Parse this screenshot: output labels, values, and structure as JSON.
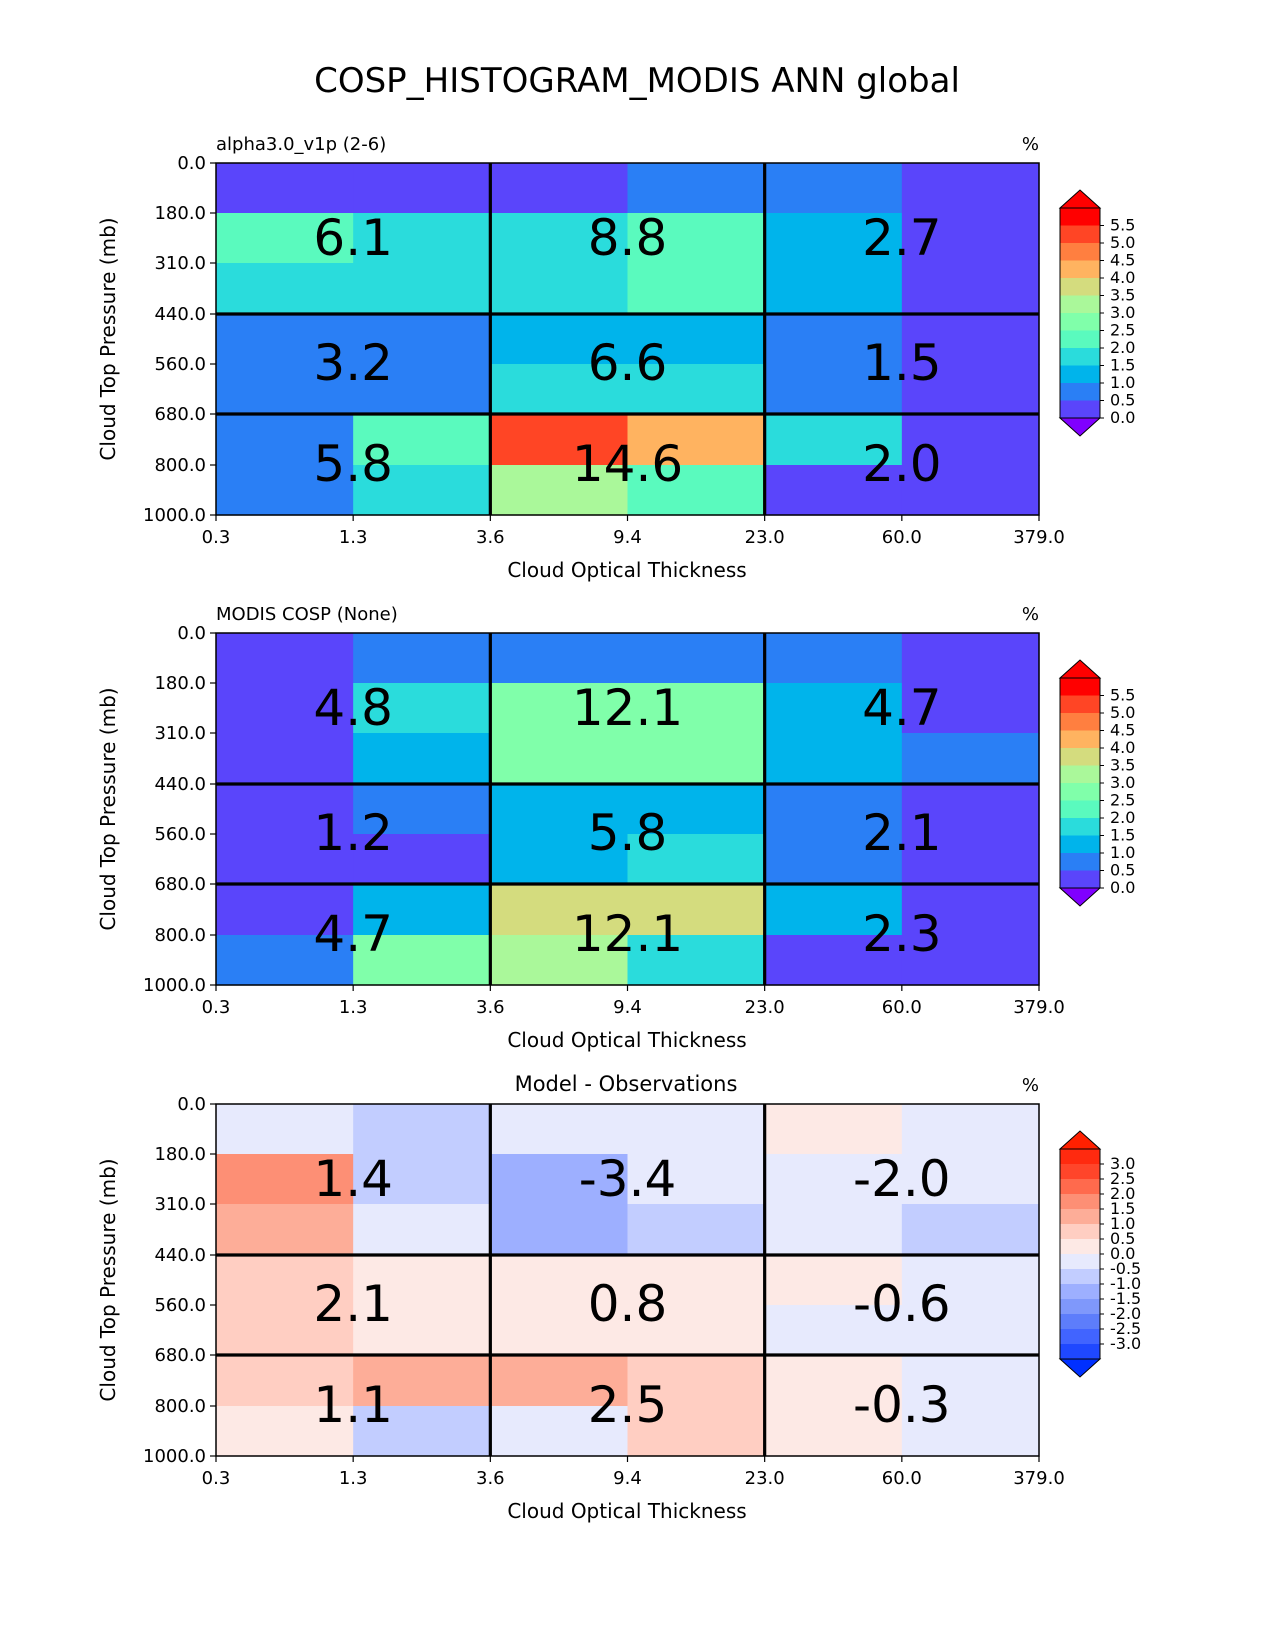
{
  "figure": {
    "title": "COSP_HISTOGRAM_MODIS ANN global"
  },
  "chart_data": [
    {
      "type": "heatmap",
      "title": "",
      "left_title": "alpha3.0_v1p (2-6)",
      "units": "%",
      "xlabel": "Cloud Optical Thickness",
      "ylabel": "Cloud Top Pressure (mb)",
      "x_ticks": [
        "0.3",
        "1.3",
        "3.6",
        "9.4",
        "23.0",
        "60.0",
        "379.0"
      ],
      "y_ticks": [
        "0.0",
        "180.0",
        "310.0",
        "440.0",
        "560.0",
        "680.0",
        "800.0",
        "1000.0"
      ],
      "values": [
        [
          0.3,
          0.3,
          0.3,
          0.8,
          0.8,
          0.3
        ],
        [
          2.3,
          1.5,
          1.8,
          2.3,
          1.3,
          0.3
        ],
        [
          1.5,
          1.5,
          1.8,
          2.3,
          1.3,
          0.3
        ],
        [
          0.8,
          0.8,
          1.3,
          1.3,
          0.8,
          0.3
        ],
        [
          0.8,
          0.8,
          1.8,
          1.8,
          0.8,
          0.3
        ],
        [
          0.8,
          2.3,
          5.0,
          4.3,
          1.8,
          0.3
        ],
        [
          0.8,
          1.8,
          3.3,
          2.3,
          0.3,
          0.3
        ]
      ],
      "block_totals": [
        [
          "6.1",
          "8.8",
          "2.7"
        ],
        [
          "3.2",
          "6.6",
          "1.5"
        ],
        [
          "5.8",
          "14.6",
          "2.0"
        ]
      ],
      "colorbar": {
        "ticks": [
          "5.5",
          "5.0",
          "4.5",
          "4.0",
          "3.5",
          "3.0",
          "2.5",
          "2.0",
          "1.5",
          "1.0",
          "0.5",
          "0.0"
        ],
        "colors": [
          "#5a45fb",
          "#2a7ff5",
          "#00b4eb",
          "#2adcdc",
          "#5afabe",
          "#80ffaa",
          "#aaf89a",
          "#d4dc7e",
          "#ffb360",
          "#ff7f40",
          "#ff4525",
          "#ff0000"
        ],
        "under": "#8000ff",
        "over": "#ff0000"
      }
    },
    {
      "type": "heatmap",
      "title": "",
      "left_title": "MODIS COSP (None)",
      "units": "%",
      "xlabel": "Cloud Optical Thickness",
      "ylabel": "Cloud Top Pressure (mb)",
      "x_ticks": [
        "0.3",
        "1.3",
        "3.6",
        "9.4",
        "23.0",
        "60.0",
        "379.0"
      ],
      "y_ticks": [
        "0.0",
        "180.0",
        "310.0",
        "440.0",
        "560.0",
        "680.0",
        "800.0",
        "1000.0"
      ],
      "values": [
        [
          0.3,
          0.8,
          0.8,
          0.8,
          0.8,
          0.3
        ],
        [
          0.3,
          1.8,
          2.8,
          2.8,
          1.3,
          0.3
        ],
        [
          0.3,
          1.3,
          2.8,
          2.8,
          1.3,
          0.8
        ],
        [
          0.3,
          0.8,
          1.3,
          1.3,
          0.8,
          0.3
        ],
        [
          0.3,
          0.3,
          1.3,
          1.8,
          0.8,
          0.3
        ],
        [
          0.3,
          1.3,
          3.8,
          3.8,
          1.3,
          0.3
        ],
        [
          0.8,
          2.8,
          3.3,
          1.8,
          0.3,
          0.3
        ]
      ],
      "block_totals": [
        [
          "4.8",
          "12.1",
          "4.7"
        ],
        [
          "1.2",
          "5.8",
          "2.1"
        ],
        [
          "4.7",
          "12.1",
          "2.3"
        ]
      ],
      "colorbar": {
        "ticks": [
          "5.5",
          "5.0",
          "4.5",
          "4.0",
          "3.5",
          "3.0",
          "2.5",
          "2.0",
          "1.5",
          "1.0",
          "0.5",
          "0.0"
        ],
        "colors": [
          "#5a45fb",
          "#2a7ff5",
          "#00b4eb",
          "#2adcdc",
          "#5afabe",
          "#80ffaa",
          "#aaf89a",
          "#d4dc7e",
          "#ffb360",
          "#ff7f40",
          "#ff4525",
          "#ff0000"
        ],
        "under": "#8000ff",
        "over": "#ff0000"
      }
    },
    {
      "type": "heatmap",
      "title": "Model - Observations",
      "left_title": "",
      "units": "%",
      "xlabel": "Cloud Optical Thickness",
      "ylabel": "Cloud Top Pressure (mb)",
      "x_ticks": [
        "0.3",
        "1.3",
        "3.6",
        "9.4",
        "23.0",
        "60.0",
        "379.0"
      ],
      "y_ticks": [
        "0.0",
        "180.0",
        "310.0",
        "440.0",
        "560.0",
        "680.0",
        "800.0",
        "1000.0"
      ],
      "values": [
        [
          -0.2,
          -0.7,
          -0.2,
          -0.2,
          0.2,
          -0.2
        ],
        [
          1.7,
          -0.7,
          -1.2,
          -0.2,
          -0.2,
          -0.2
        ],
        [
          1.2,
          -0.2,
          -1.2,
          -0.7,
          -0.2,
          -0.7
        ],
        [
          0.7,
          0.2,
          0.2,
          0.2,
          0.2,
          -0.2
        ],
        [
          0.7,
          0.2,
          0.2,
          0.2,
          -0.2,
          -0.2
        ],
        [
          0.7,
          1.2,
          1.2,
          0.7,
          0.2,
          -0.2
        ],
        [
          0.2,
          -0.7,
          -0.2,
          0.7,
          0.2,
          -0.2
        ]
      ],
      "block_totals": [
        [
          "1.4",
          "-3.4",
          "-2.0"
        ],
        [
          "2.1",
          "0.8",
          "-0.6"
        ],
        [
          "1.1",
          "2.5",
          "-0.3"
        ]
      ],
      "colorbar": {
        "ticks": [
          "3.0",
          "2.5",
          "2.0",
          "1.5",
          "1.0",
          "0.5",
          "0.0",
          "-0.5",
          "-1.0",
          "-1.5",
          "-2.0",
          "-2.5",
          "-3.0"
        ],
        "colors": [
          "#1f48ff",
          "#4164ff",
          "#5d7dfb",
          "#7f98fb",
          "#9dafff",
          "#c2cdff",
          "#e7eafd",
          "#fde9e5",
          "#ffcec2",
          "#fdad98",
          "#fd8f75",
          "#ff6a4d",
          "#ff452a",
          "#ff2a0f"
        ],
        "under": "#0030ff",
        "over": "#ff2000"
      }
    }
  ]
}
